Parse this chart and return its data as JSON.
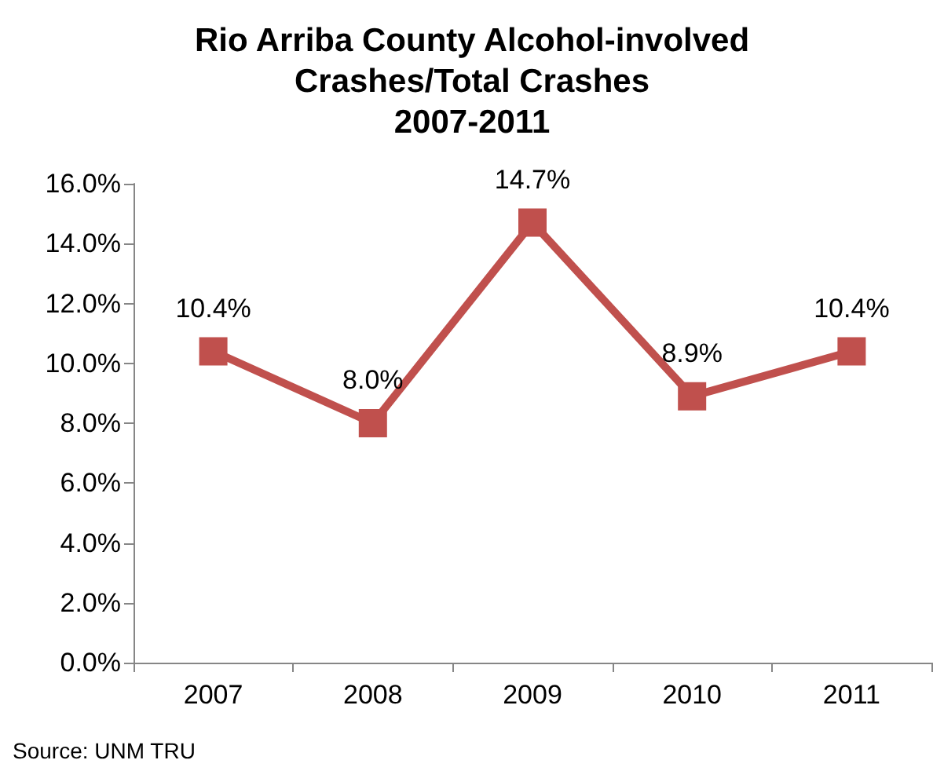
{
  "chart_data": {
    "type": "line",
    "title": "Rio Arriba County Alcohol-involved\nCrashes/Total Crashes\n2007-2011",
    "categories": [
      "2007",
      "2008",
      "2009",
      "2010",
      "2011"
    ],
    "series": [
      {
        "color": "#c0504d",
        "values": [
          10.4,
          8.0,
          14.7,
          8.9,
          10.4
        ],
        "value_labels": [
          "10.4%",
          "8.0%",
          "14.7%",
          "8.9%",
          "10.4%"
        ]
      }
    ],
    "ylim": [
      0,
      16
    ],
    "yticks": [
      {
        "value": 0,
        "label": "0.0%"
      },
      {
        "value": 2,
        "label": "2.0%"
      },
      {
        "value": 4,
        "label": "4.0%"
      },
      {
        "value": 6,
        "label": "6.0%"
      },
      {
        "value": 8,
        "label": "8.0%"
      },
      {
        "value": 10,
        "label": "10.0%"
      },
      {
        "value": 12,
        "label": "12.0%"
      },
      {
        "value": 14,
        "label": "14.0%"
      },
      {
        "value": 16,
        "label": "16.0%"
      }
    ],
    "grid": false,
    "marker": "square",
    "line_style": "solid",
    "annotations": [
      "Source: UNM TRU"
    ]
  }
}
